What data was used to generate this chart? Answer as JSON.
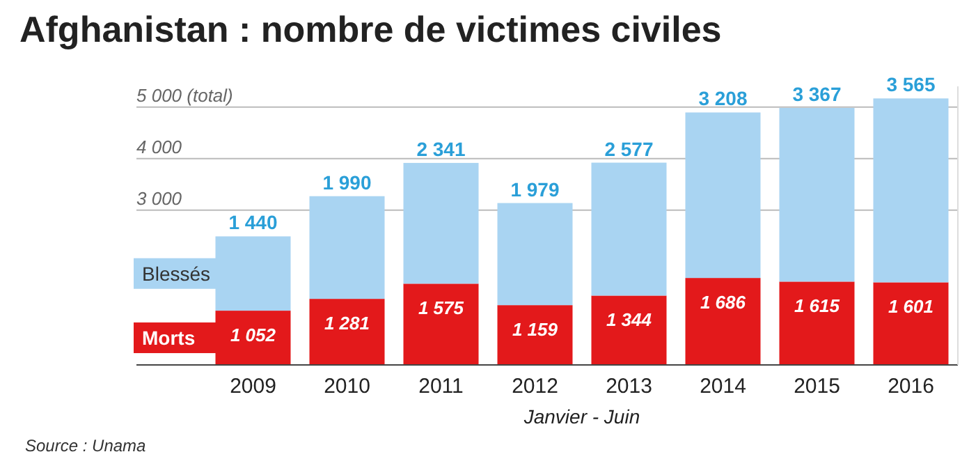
{
  "chart_data": {
    "type": "bar",
    "title": "Afghanistan : nombre de victimes civiles",
    "xlabel": "Janvier - Juin",
    "annotations": [
      "Source : Unama"
    ],
    "categories": [
      "2009",
      "2010",
      "2011",
      "2012",
      "2013",
      "2014",
      "2015",
      "2016"
    ],
    "stacked": true,
    "series": [
      {
        "name": "Morts",
        "color": "#e3191b",
        "values": [
          1052,
          1281,
          1575,
          1159,
          1344,
          1686,
          1615,
          1601
        ],
        "value_labels": [
          "1 052",
          "1 281",
          "1 575",
          "1 159",
          "1 344",
          "1 686",
          "1 615",
          "1 601"
        ]
      },
      {
        "name": "Blessés",
        "color": "#a9d4f2",
        "values": [
          1440,
          1990,
          2341,
          1979,
          2577,
          3208,
          3367,
          3565
        ],
        "value_labels": [
          "1 440",
          "1 990",
          "2 341",
          "1 979",
          "2 577",
          "3 208",
          "3 367",
          "3 565"
        ]
      }
    ],
    "ylim": [
      0,
      5400
    ],
    "yticks": [
      3000,
      4000,
      {
        "value": 5000,
        "label": "5 000 (total)"
      }
    ],
    "grid": "y",
    "legend": "left"
  }
}
